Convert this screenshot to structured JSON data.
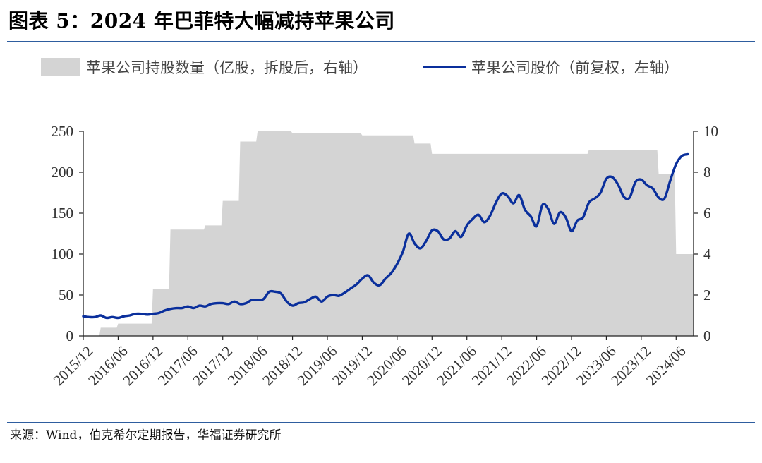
{
  "figure": {
    "title": "图表 5：2024 年巴菲特大幅减持苹果公司",
    "source": "来源：Wind，伯克希尔定期报告，华福证券研究所"
  },
  "colors": {
    "area": "#d4d4d4",
    "line": "#0a2f9c",
    "rule": "#2e5d9f",
    "axis": "#222222"
  },
  "chart_data": {
    "type": "area",
    "legend": [
      "苹果公司持股数量（亿股，拆股后，右轴）",
      "苹果公司股价（前复权，左轴）"
    ],
    "legend_placement": "top",
    "grid": false,
    "x_tick_labels": [
      "2015/12",
      "2016/06",
      "2016/12",
      "2017/06",
      "2017/12",
      "2018/06",
      "2018/12",
      "2019/06",
      "2019/12",
      "2020/06",
      "2020/12",
      "2021/06",
      "2021/12",
      "2022/06",
      "2022/12",
      "2023/06",
      "2023/12",
      "2024/06"
    ],
    "x_range": [
      "2015/12",
      "2024/09"
    ],
    "left_axis": {
      "ylim": [
        0,
        250
      ],
      "ticks": [
        0,
        50,
        100,
        150,
        200,
        250
      ]
    },
    "right_axis": {
      "ylim": [
        0,
        10
      ],
      "ticks": [
        0,
        2,
        4,
        6,
        8,
        10
      ]
    },
    "series": [
      {
        "name": "苹果公司持股数量（亿股，拆股后，右轴）",
        "type": "area",
        "axis": "right",
        "step": true,
        "points": [
          [
            "2015/12",
            0
          ],
          [
            "2016/03",
            0.4
          ],
          [
            "2016/06",
            0.6
          ],
          [
            "2016/12",
            2.3
          ],
          [
            "2017/03",
            5.2
          ],
          [
            "2017/06",
            5.2
          ],
          [
            "2017/09",
            5.4
          ],
          [
            "2017/12",
            6.6
          ],
          [
            "2018/03",
            9.5
          ],
          [
            "2018/06",
            10
          ],
          [
            "2018/09",
            10
          ],
          [
            "2018/12",
            9.9
          ],
          [
            "2019/03",
            9.9
          ],
          [
            "2019/06",
            9.9
          ],
          [
            "2019/09",
            9.9
          ],
          [
            "2019/12",
            9.8
          ],
          [
            "2020/03",
            9.8
          ],
          [
            "2020/06",
            9.8
          ],
          [
            "2020/09",
            9.4
          ],
          [
            "2020/12",
            8.9
          ],
          [
            "2021/03",
            8.9
          ],
          [
            "2021/06",
            8.9
          ],
          [
            "2021/09",
            8.9
          ],
          [
            "2021/12",
            8.9
          ],
          [
            "2022/03",
            8.9
          ],
          [
            "2022/06",
            8.9
          ],
          [
            "2022/09",
            8.9
          ],
          [
            "2022/12",
            8.9
          ],
          [
            "2023/03",
            9.1
          ],
          [
            "2023/06",
            9.1
          ],
          [
            "2023/09",
            9.1
          ],
          [
            "2023/12",
            9.1
          ],
          [
            "2024/03",
            7.9
          ],
          [
            "2024/06",
            4.0
          ],
          [
            "2024/09",
            4.0
          ]
        ]
      },
      {
        "name": "苹果公司股价（前复权，左轴）",
        "type": "line",
        "axis": "left",
        "points": [
          [
            "2015/12",
            24
          ],
          [
            "2016/01",
            23
          ],
          [
            "2016/02",
            23
          ],
          [
            "2016/03",
            25
          ],
          [
            "2016/04",
            22
          ],
          [
            "2016/05",
            23
          ],
          [
            "2016/06",
            22
          ],
          [
            "2016/07",
            24
          ],
          [
            "2016/08",
            25
          ],
          [
            "2016/09",
            27
          ],
          [
            "2016/10",
            27
          ],
          [
            "2016/11",
            26
          ],
          [
            "2016/12",
            27
          ],
          [
            "2017/01",
            28
          ],
          [
            "2017/02",
            31
          ],
          [
            "2017/03",
            33
          ],
          [
            "2017/04",
            34
          ],
          [
            "2017/05",
            34
          ],
          [
            "2017/06",
            36
          ],
          [
            "2017/07",
            34
          ],
          [
            "2017/08",
            37
          ],
          [
            "2017/09",
            36
          ],
          [
            "2017/10",
            39
          ],
          [
            "2017/11",
            40
          ],
          [
            "2017/12",
            40
          ],
          [
            "2018/01",
            39
          ],
          [
            "2018/02",
            42
          ],
          [
            "2018/03",
            39
          ],
          [
            "2018/04",
            40
          ],
          [
            "2018/05",
            44
          ],
          [
            "2018/06",
            44
          ],
          [
            "2018/07",
            45
          ],
          [
            "2018/08",
            54
          ],
          [
            "2018/09",
            54
          ],
          [
            "2018/10",
            52
          ],
          [
            "2018/11",
            42
          ],
          [
            "2018/12",
            37
          ],
          [
            "2019/01",
            40
          ],
          [
            "2019/02",
            41
          ],
          [
            "2019/03",
            45
          ],
          [
            "2019/04",
            48
          ],
          [
            "2019/05",
            42
          ],
          [
            "2019/06",
            48
          ],
          [
            "2019/07",
            50
          ],
          [
            "2019/08",
            49
          ],
          [
            "2019/09",
            53
          ],
          [
            "2019/10",
            58
          ],
          [
            "2019/11",
            63
          ],
          [
            "2019/12",
            70
          ],
          [
            "2020/01",
            74
          ],
          [
            "2020/02",
            65
          ],
          [
            "2020/03",
            62
          ],
          [
            "2020/04",
            70
          ],
          [
            "2020/05",
            77
          ],
          [
            "2020/06",
            88
          ],
          [
            "2020/07",
            103
          ],
          [
            "2020/08",
            125
          ],
          [
            "2020/09",
            113
          ],
          [
            "2020/10",
            107
          ],
          [
            "2020/11",
            116
          ],
          [
            "2020/12",
            129
          ],
          [
            "2021/01",
            128
          ],
          [
            "2021/02",
            118
          ],
          [
            "2021/03",
            119
          ],
          [
            "2021/04",
            128
          ],
          [
            "2021/05",
            121
          ],
          [
            "2021/06",
            135
          ],
          [
            "2021/07",
            143
          ],
          [
            "2021/08",
            148
          ],
          [
            "2021/09",
            139
          ],
          [
            "2021/10",
            147
          ],
          [
            "2021/11",
            163
          ],
          [
            "2021/12",
            174
          ],
          [
            "2022/01",
            171
          ],
          [
            "2022/02",
            162
          ],
          [
            "2022/03",
            172
          ],
          [
            "2022/04",
            154
          ],
          [
            "2022/05",
            146
          ],
          [
            "2022/06",
            134
          ],
          [
            "2022/07",
            160
          ],
          [
            "2022/08",
            155
          ],
          [
            "2022/09",
            137
          ],
          [
            "2022/10",
            151
          ],
          [
            "2022/11",
            145
          ],
          [
            "2022/12",
            128
          ],
          [
            "2023/01",
            141
          ],
          [
            "2023/02",
            145
          ],
          [
            "2023/03",
            163
          ],
          [
            "2023/04",
            168
          ],
          [
            "2023/05",
            175
          ],
          [
            "2023/06",
            192
          ],
          [
            "2023/07",
            194
          ],
          [
            "2023/08",
            185
          ],
          [
            "2023/09",
            170
          ],
          [
            "2023/10",
            169
          ],
          [
            "2023/11",
            188
          ],
          [
            "2023/12",
            191
          ],
          [
            "2024/01",
            184
          ],
          [
            "2024/02",
            180
          ],
          [
            "2024/03",
            169
          ],
          [
            "2024/04",
            168
          ],
          [
            "2024/05",
            190
          ],
          [
            "2024/06",
            210
          ],
          [
            "2024/07",
            220
          ],
          [
            "2024/08",
            222
          ]
        ]
      }
    ]
  }
}
